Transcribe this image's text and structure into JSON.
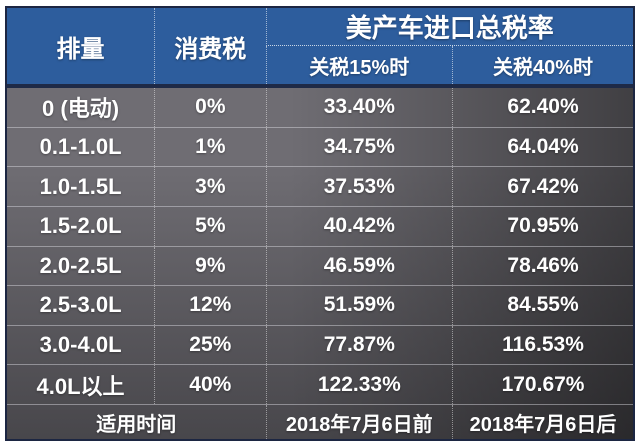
{
  "chart_data": {
    "type": "table",
    "title": "美产车进口总税率",
    "columns": [
      "排量",
      "消费税",
      "关税15%时",
      "关税40%时"
    ],
    "header": {
      "displacement": "排量",
      "consumption_tax": "消费税",
      "group": "美产车进口总税率",
      "tariff15": "关税15%时",
      "tariff40": "关税40%时"
    },
    "rows": [
      {
        "displacement": "0 (电动)",
        "consumption_tax": "0%",
        "rate15": "33.40%",
        "rate40": "62.40%"
      },
      {
        "displacement": "0.1-1.0L",
        "consumption_tax": "1%",
        "rate15": "34.75%",
        "rate40": "64.04%"
      },
      {
        "displacement": "1.0-1.5L",
        "consumption_tax": "3%",
        "rate15": "37.53%",
        "rate40": "67.42%"
      },
      {
        "displacement": "1.5-2.0L",
        "consumption_tax": "5%",
        "rate15": "40.42%",
        "rate40": "70.95%"
      },
      {
        "displacement": "2.0-2.5L",
        "consumption_tax": "9%",
        "rate15": "46.59%",
        "rate40": "78.46%"
      },
      {
        "displacement": "2.5-3.0L",
        "consumption_tax": "12%",
        "rate15": "51.59%",
        "rate40": "84.55%"
      },
      {
        "displacement": "3.0-4.0L",
        "consumption_tax": "25%",
        "rate15": "77.87%",
        "rate40": "116.53%"
      },
      {
        "displacement": "4.0L以上",
        "consumption_tax": "40%",
        "rate15": "122.33%",
        "rate40": "170.67%"
      }
    ],
    "footer": {
      "label": "适用时间",
      "before": "2018年7月6日前",
      "after": "2018年7月6日后"
    },
    "colors": {
      "header_blue": "#2d5d9d",
      "header_separator_navy": "#1e2a47",
      "body_gray": "#6f6d73",
      "body_dark_corner": "#2e2c32",
      "outer_border": "#1c2642",
      "text": "#ffffff",
      "page_background": "#ffffff"
    }
  }
}
